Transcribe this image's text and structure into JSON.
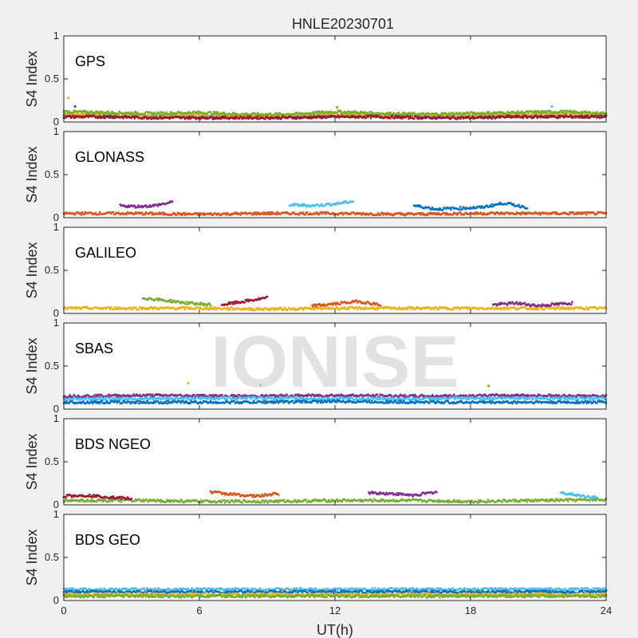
{
  "figure": {
    "title": "HNLE20230701",
    "watermark": "IONISE",
    "ylabel": "S4 Index",
    "xlabel": "UT(h)"
  },
  "chart_data": {
    "type": "scatter",
    "title": "HNLE20230701",
    "xlabel": "UT(h)",
    "ylabel": "S4 Index",
    "xlim": [
      0,
      24
    ],
    "ylim": [
      0,
      1
    ],
    "x_ticks": [
      "0",
      "6",
      "12",
      "18",
      "24"
    ],
    "y_ticks": [
      "0",
      "0.5",
      "1"
    ],
    "colors": [
      "#0072BD",
      "#D95319",
      "#EDB120",
      "#7E2F8E",
      "#77AC30",
      "#4DBEEE",
      "#A2142F"
    ],
    "panels": [
      {
        "label": "GPS",
        "series": [
          {
            "x": [
              0,
              2,
              4,
              6,
              8,
              10,
              12,
              14,
              16,
              18,
              20,
              22,
              24
            ],
            "y": [
              0.08,
              0.07,
              0.07,
              0.06,
              0.06,
              0.06,
              0.07,
              0.07,
              0.06,
              0.06,
              0.07,
              0.08,
              0.07
            ]
          },
          {
            "x": [
              0,
              2,
              4,
              6,
              8,
              10,
              12,
              14,
              16,
              18,
              20,
              22,
              24
            ],
            "y": [
              0.1,
              0.09,
              0.08,
              0.08,
              0.07,
              0.08,
              0.09,
              0.08,
              0.08,
              0.07,
              0.09,
              0.1,
              0.09
            ]
          },
          {
            "x": [
              0,
              2,
              4,
              6,
              8,
              10,
              12,
              14,
              16,
              18,
              20,
              22,
              24
            ],
            "y": [
              0.12,
              0.11,
              0.1,
              0.11,
              0.09,
              0.09,
              0.12,
              0.1,
              0.09,
              0.1,
              0.11,
              0.12,
              0.1
            ]
          },
          {
            "x": [
              0,
              2,
              4,
              6,
              8,
              10,
              12,
              14,
              16,
              18,
              20,
              22,
              24
            ],
            "y": [
              0.06,
              0.06,
              0.05,
              0.05,
              0.05,
              0.05,
              0.06,
              0.06,
              0.05,
              0.05,
              0.06,
              0.06,
              0.06
            ]
          }
        ],
        "outliers": [
          {
            "x": 0.2,
            "y": 0.28
          },
          {
            "x": 0.5,
            "y": 0.18
          },
          {
            "x": 12.1,
            "y": 0.17
          },
          {
            "x": 21.6,
            "y": 0.18
          }
        ]
      },
      {
        "label": "GLONASS",
        "series": [
          {
            "x": [
              0,
              3,
              6,
              9,
              12,
              15,
              18,
              21,
              24
            ],
            "y": [
              0.05,
              0.05,
              0.04,
              0.05,
              0.05,
              0.04,
              0.05,
              0.05,
              0.05
            ]
          },
          {
            "x": [
              2.5,
              3.2,
              4.0,
              4.8
            ],
            "y": [
              0.14,
              0.13,
              0.14,
              0.18
            ]
          },
          {
            "x": [
              10.0,
              11.0,
              12.0,
              12.8
            ],
            "y": [
              0.15,
              0.14,
              0.16,
              0.19
            ]
          },
          {
            "x": [
              15.5,
              16.5,
              17.5,
              18.5,
              19.5,
              20.5
            ],
            "y": [
              0.14,
              0.1,
              0.11,
              0.12,
              0.17,
              0.12
            ]
          }
        ],
        "outliers": []
      },
      {
        "label": "GALILEO",
        "series": [
          {
            "x": [
              0,
              3,
              6,
              9,
              12,
              15,
              18,
              21,
              24
            ],
            "y": [
              0.06,
              0.06,
              0.06,
              0.05,
              0.06,
              0.06,
              0.06,
              0.06,
              0.06
            ]
          },
          {
            "x": [
              3.5,
              4.5,
              5.5,
              6.5
            ],
            "y": [
              0.18,
              0.15,
              0.12,
              0.1
            ]
          },
          {
            "x": [
              7.0,
              8.0,
              9.0
            ],
            "y": [
              0.1,
              0.14,
              0.18
            ]
          },
          {
            "x": [
              11.0,
              12.0,
              13.0,
              14.0
            ],
            "y": [
              0.09,
              0.11,
              0.14,
              0.1
            ]
          },
          {
            "x": [
              19.0,
              20.0,
              21.0,
              22.5
            ],
            "y": [
              0.1,
              0.12,
              0.09,
              0.12
            ]
          }
        ],
        "outliers": []
      },
      {
        "label": "SBAS",
        "series": [
          {
            "x": [
              0,
              4,
              8,
              12,
              16,
              20,
              24
            ],
            "y": [
              0.15,
              0.16,
              0.15,
              0.16,
              0.15,
              0.16,
              0.15
            ]
          },
          {
            "x": [
              0,
              4,
              8,
              12,
              16,
              20,
              24
            ],
            "y": [
              0.12,
              0.12,
              0.13,
              0.12,
              0.12,
              0.13,
              0.12
            ]
          },
          {
            "x": [
              0,
              4,
              8,
              12,
              16,
              20,
              24
            ],
            "y": [
              0.08,
              0.08,
              0.08,
              0.09,
              0.08,
              0.08,
              0.08
            ]
          }
        ],
        "outliers": [
          {
            "x": 5.5,
            "y": 0.3
          },
          {
            "x": 8.7,
            "y": 0.28
          },
          {
            "x": 18.8,
            "y": 0.27
          }
        ]
      },
      {
        "label": "BDS NGEO",
        "series": [
          {
            "x": [
              0,
              3,
              6,
              9,
              12,
              15,
              18,
              21,
              24
            ],
            "y": [
              0.05,
              0.05,
              0.04,
              0.04,
              0.05,
              0.05,
              0.04,
              0.05,
              0.06
            ]
          },
          {
            "x": [
              0,
              1,
              2,
              3
            ],
            "y": [
              0.1,
              0.11,
              0.09,
              0.07
            ]
          },
          {
            "x": [
              6.5,
              7.5,
              8.5,
              9.5
            ],
            "y": [
              0.15,
              0.12,
              0.1,
              0.13
            ]
          },
          {
            "x": [
              13.5,
              14.5,
              15.5,
              16.5
            ],
            "y": [
              0.14,
              0.13,
              0.11,
              0.15
            ]
          },
          {
            "x": [
              22.0,
              22.8,
              23.6
            ],
            "y": [
              0.14,
              0.11,
              0.08
            ]
          }
        ],
        "outliers": []
      },
      {
        "label": "BDS GEO",
        "series": [
          {
            "x": [
              0,
              4,
              8,
              12,
              16,
              20,
              24
            ],
            "y": [
              0.13,
              0.13,
              0.13,
              0.13,
              0.13,
              0.13,
              0.13
            ]
          },
          {
            "x": [
              0,
              4,
              8,
              12,
              16,
              20,
              24
            ],
            "y": [
              0.1,
              0.1,
              0.1,
              0.1,
              0.1,
              0.1,
              0.1
            ]
          },
          {
            "x": [
              0,
              4,
              8,
              12,
              16,
              20,
              24
            ],
            "y": [
              0.07,
              0.07,
              0.07,
              0.07,
              0.07,
              0.07,
              0.07
            ]
          },
          {
            "x": [
              0,
              4,
              8,
              12,
              16,
              20,
              24
            ],
            "y": [
              0.05,
              0.05,
              0.05,
              0.05,
              0.05,
              0.05,
              0.05
            ]
          }
        ],
        "outliers": []
      }
    ]
  }
}
